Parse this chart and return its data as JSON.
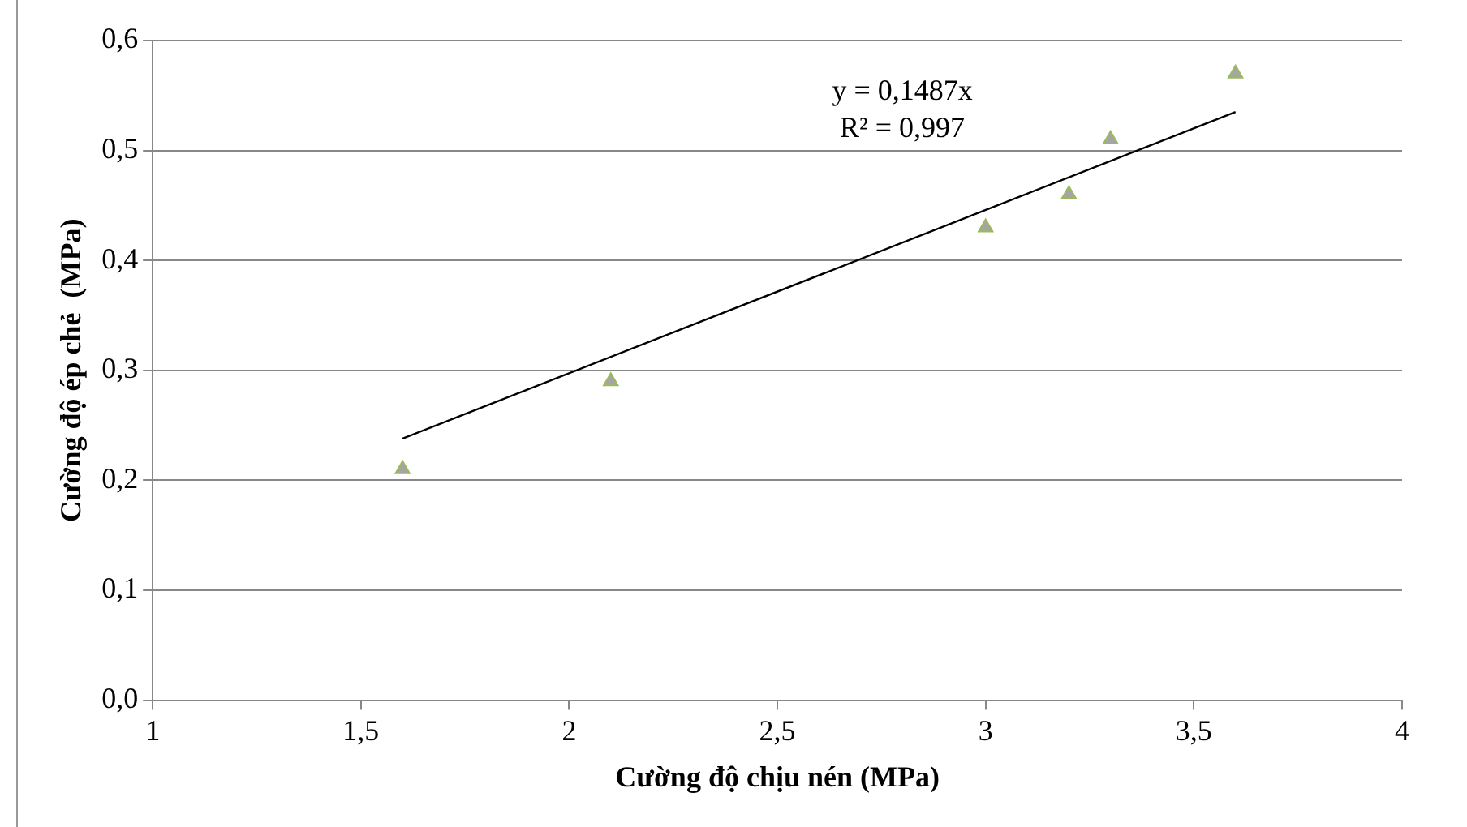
{
  "chart_data": {
    "type": "scatter",
    "xlabel": "Cường độ chịu nén (MPa)",
    "ylabel": "Cường độ ép chẻ  (MPa)",
    "annotations": [
      "y = 0,1487x",
      "R² = 0,997"
    ],
    "series": [
      {
        "type": "scatter",
        "color": "#a5a5a5",
        "x": [
          1.6,
          2.1,
          3.0,
          3.2,
          3.3,
          3.6
        ],
        "values": [
          0.21,
          0.29,
          0.43,
          0.46,
          0.51,
          0.57
        ],
        "marker": "triangle"
      },
      {
        "type": "line",
        "color": "#000000",
        "x": [
          1.6,
          3.6
        ],
        "values": [
          0.238,
          0.535
        ],
        "marker": "none"
      }
    ],
    "xlim": [
      1,
      4
    ],
    "xticks": [
      1,
      {
        "value": 1.5,
        "label": "1,5"
      },
      2,
      {
        "value": 2.5,
        "label": "2,5"
      },
      3,
      {
        "value": 3.5,
        "label": "3,5"
      },
      4
    ],
    "ylim": [
      0,
      0.6
    ],
    "yticks": [
      {
        "value": 0,
        "label": "0,0"
      },
      {
        "value": 0.1,
        "label": "0,1"
      },
      {
        "value": 0.2,
        "label": "0,2"
      },
      {
        "value": 0.3,
        "label": "0,3"
      },
      {
        "value": 0.4,
        "label": "0,4"
      },
      {
        "value": 0.5,
        "label": "0,5"
      },
      {
        "value": 0.6,
        "label": "0,6"
      }
    ],
    "grid": "y",
    "legend": false
  }
}
